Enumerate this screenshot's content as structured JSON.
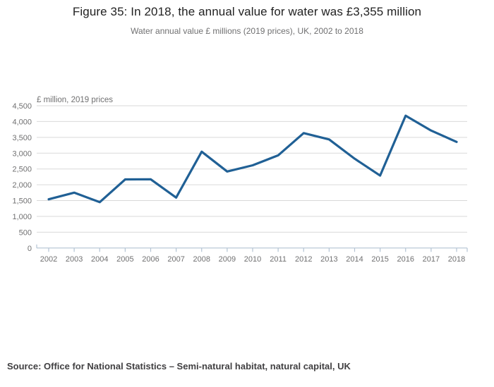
{
  "figure": {
    "title": "Figure 35: In 2018, the annual value for water was £3,355 million",
    "subtitle": "Water annual value £ millions (2019 prices), UK, 2002 to 2018",
    "source": "Source: Office for National Statistics – Semi-natural habitat, natural capital, UK"
  },
  "colors": {
    "line": "#206095",
    "gridline": "#d9d9d9",
    "axis_line": "#b3c3d3",
    "axis_text": "#707071",
    "title_text": "#222222",
    "subtitle_text": "#707071",
    "source_text": "#414042"
  },
  "chart_data": {
    "type": "line",
    "title": "Figure 35: In 2018, the annual value for water was £3,355 million",
    "subtitle": "Water annual value £ millions (2019 prices), UK, 2002 to 2018",
    "xlabel": "",
    "ylabel": "£ million, 2019 prices",
    "x": [
      "2002",
      "2003",
      "2004",
      "2005",
      "2006",
      "2007",
      "2008",
      "2009",
      "2010",
      "2011",
      "2012",
      "2013",
      "2014",
      "2015",
      "2016",
      "2017",
      "2018"
    ],
    "series": [
      {
        "name": "Water annual value",
        "values": [
          1540,
          1750,
          1450,
          2170,
          2175,
          1595,
          3045,
          2420,
          2615,
          2930,
          3635,
          3435,
          2825,
          2290,
          4185,
          3715,
          3355
        ]
      }
    ],
    "ylim": [
      0,
      4500
    ],
    "ytick_interval": 500,
    "ytick_labels": [
      "0",
      "500",
      "1,000",
      "1,500",
      "2,000",
      "2,500",
      "3,000",
      "3,500",
      "4,000",
      "4,500"
    ],
    "grid": "horizontal",
    "legend": "none",
    "highlight_note": "2018 value called out in title: £3,355 million"
  }
}
